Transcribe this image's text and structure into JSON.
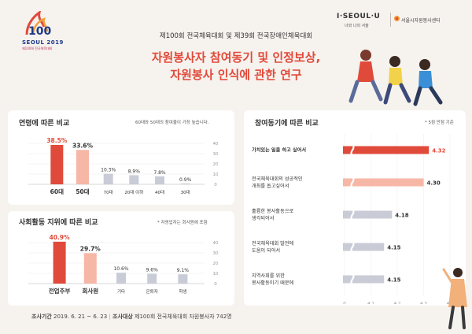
{
  "header": {
    "logo_seoul": "SEOUL 2019",
    "logo_sub": "제100회 전국체육대회",
    "iseoul": "I·SEOUL·U",
    "iseoul_sub": "너와 나의 서울",
    "center_name": "서울시자원봉사센터",
    "subtitle": "제100회 전국체육대회 및 제39회 전국장애인체육대회",
    "title_line1": "자원봉사자 참여동기 및 인정보상,",
    "title_line2": "자원봉사 인식에 관한 연구"
  },
  "panels": {
    "age": {
      "title": "연령에 따른 비교",
      "note": "60대와 50대의 참여율이 가장 높습니다."
    },
    "social": {
      "title": "사회활동 지위에 따른 비교",
      "note": "* 자영업자는 회사원에 포함"
    },
    "motive": {
      "title": "참여동기에 따른 비교",
      "note": "* 5점 만점 기준"
    }
  },
  "footer": {
    "label1": "조사기간",
    "value1": "2019. 6. 21 ~ 6. 23",
    "label2": "조사대상",
    "value2": "제100회 전국체육대회 자원봉사자 742명"
  },
  "colors": {
    "accent": "#e04a3a",
    "accent_light": "#f6b7a6",
    "gray_bar": "#c9ccd6",
    "bg": "#f6f2ee"
  },
  "chart_data": [
    {
      "type": "bar",
      "title": "연령에 따른 비교",
      "categories": [
        "60대",
        "50대",
        "70대",
        "20대 이하",
        "40대",
        "30대"
      ],
      "values": [
        38.5,
        33.6,
        10.3,
        8.9,
        7.8,
        0.9
      ],
      "value_labels": [
        "38.5%",
        "33.6%",
        "10.3%",
        "8.9%",
        "7.8%",
        "0.9%"
      ],
      "y_ticks": [
        0,
        10,
        20,
        30,
        40
      ],
      "ylim": [
        0,
        40
      ]
    },
    {
      "type": "bar",
      "title": "사회활동 지위에 따른 비교",
      "categories": [
        "전업주부",
        "회사원",
        "기타",
        "은퇴자",
        "학생"
      ],
      "values": [
        40.9,
        29.7,
        10.6,
        9.6,
        9.1
      ],
      "value_labels": [
        "40.9%",
        "29.7%",
        "10.6%",
        "9.6%",
        "9.1%"
      ],
      "y_ticks": [
        0,
        10,
        20,
        30,
        40
      ],
      "ylim": [
        0,
        40
      ]
    },
    {
      "type": "bar",
      "title": "참여동기에 따른 비교",
      "orientation": "horizontal",
      "categories": [
        "가치있는 일을 하고 싶어서",
        "전국체육대회의 성공적인 개최를 돕고싶어서",
        "훌륭한 봉사활동으로 생각되어서",
        "전국체육대회 발전에 도움이 되어서",
        "지역사회를 위한 봉사활동이기 때문에"
      ],
      "category_lines": [
        [
          "가치있는 일을 하고 싶어서"
        ],
        [
          "전국체육대회의 성공적인",
          "개최를 돕고싶어서"
        ],
        [
          "훌륭한 봉사활동으로",
          "생각되어서"
        ],
        [
          "전국체육대회 발전에",
          "도움이 되어서"
        ],
        [
          "지역사회를 위한",
          "봉사활동이기 때문에"
        ]
      ],
      "values": [
        4.32,
        4.3,
        4.18,
        4.15,
        4.15
      ],
      "value_labels": [
        "4.32",
        "4.30",
        "4.18",
        "4.15",
        "4.15"
      ],
      "x_ticks": [
        "0",
        "4.1",
        "4.2",
        "4.3",
        "4.4"
      ],
      "xlim": [
        4.0,
        4.4
      ],
      "axis_break": true
    }
  ]
}
